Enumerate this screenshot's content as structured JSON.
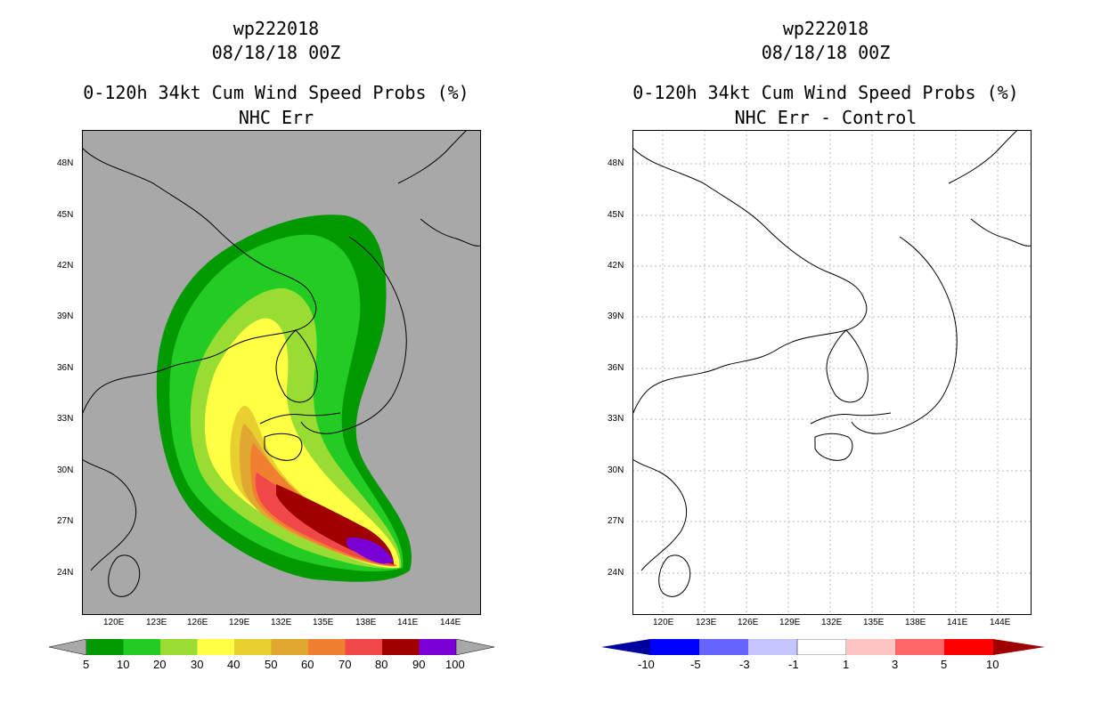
{
  "left_panel": {
    "storm_id": "wp222018",
    "datetime": "08/18/18 00Z",
    "product": "0-120h 34kt Cum Wind Speed Probs (%)",
    "subtitle": "NHC Err",
    "lat_labels": [
      "48N",
      "45N",
      "42N",
      "39N",
      "36N",
      "33N",
      "30N",
      "27N",
      "24N"
    ],
    "lon_labels": [
      "120E",
      "123E",
      "126E",
      "129E",
      "132E",
      "135E",
      "138E",
      "141E",
      "144E"
    ],
    "colorbar": {
      "labels": [
        "5",
        "10",
        "20",
        "30",
        "40",
        "50",
        "60",
        "70",
        "80",
        "90",
        "100"
      ],
      "colors": [
        "#009900",
        "#22cc22",
        "#99dd33",
        "#ffff44",
        "#e8d030",
        "#e0a830",
        "#f08030",
        "#f04848",
        "#a00000",
        "#7a00d8"
      ]
    }
  },
  "right_panel": {
    "storm_id": "wp222018",
    "datetime": "08/18/18 00Z",
    "product": "0-120h 34kt Cum Wind Speed Probs (%)",
    "subtitle": "NHC Err - Control",
    "lat_labels": [
      "48N",
      "45N",
      "42N",
      "39N",
      "36N",
      "33N",
      "30N",
      "27N",
      "24N"
    ],
    "lon_labels": [
      "120E",
      "123E",
      "126E",
      "129E",
      "132E",
      "135E",
      "138E",
      "141E",
      "144E"
    ],
    "colorbar": {
      "labels": [
        "-10",
        "-5",
        "-3",
        "-1",
        "1",
        "3",
        "5",
        "10"
      ],
      "colors": [
        "#0000a0",
        "#0000ff",
        "#6666ff",
        "#c4c4ff",
        "#ffffff",
        "#ffc4c4",
        "#ff6666",
        "#ff0000",
        "#a00000"
      ]
    }
  },
  "map_style": {
    "background_color": "#a8a8a8",
    "land_outline": "#000000",
    "grid_color": "#bbbbbb"
  }
}
